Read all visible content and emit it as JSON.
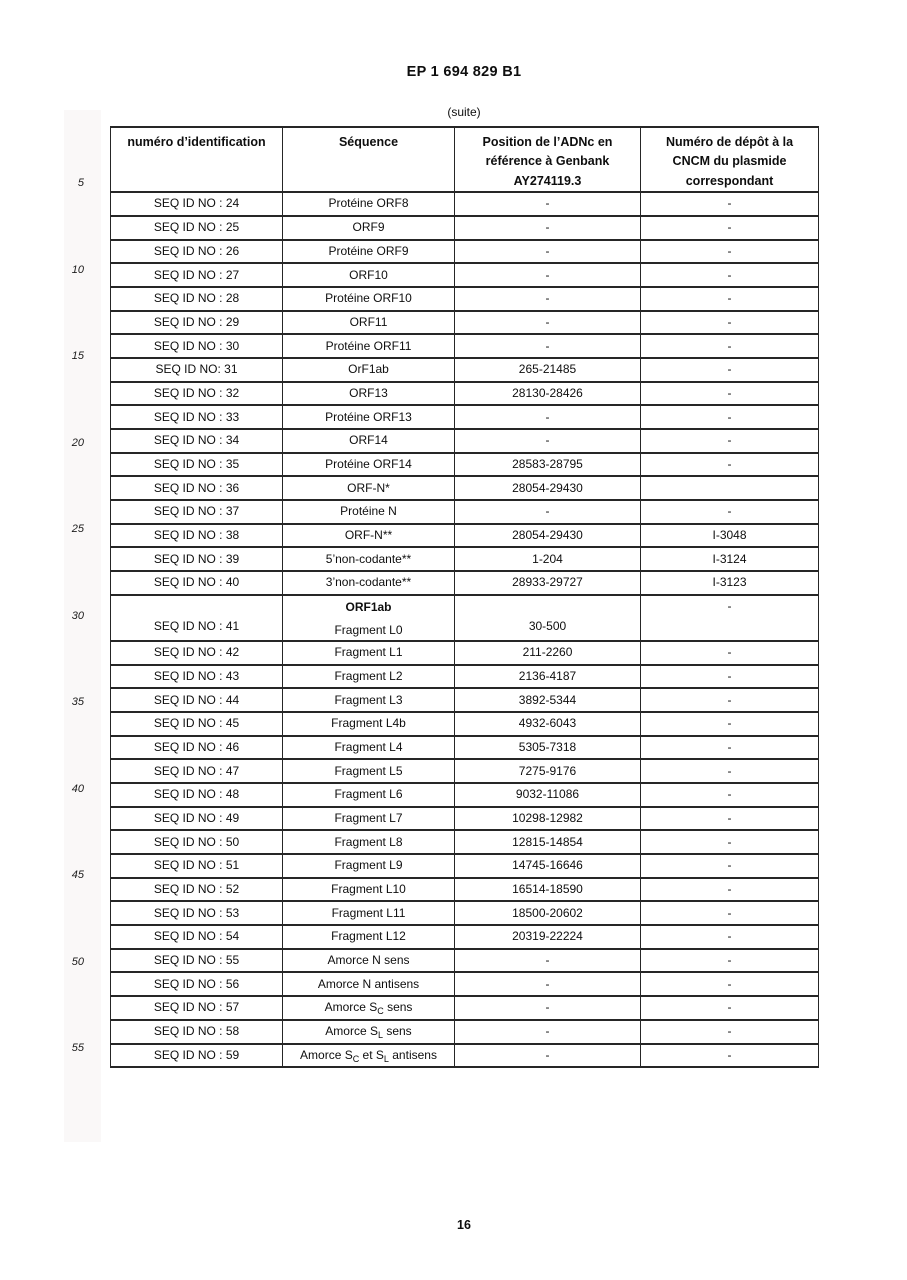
{
  "page": {
    "doc_number": "EP 1 694 829 B1",
    "continuation_label": "(suite)",
    "page_number": "16",
    "line_numbers": [
      "5",
      "10",
      "15",
      "20",
      "25",
      "30",
      "35",
      "40",
      "45",
      "50",
      "55"
    ]
  },
  "table": {
    "headers": [
      "numéro d’identification",
      "Séquence",
      "Position de l’ADNc en\nréférence à Genbank\nAY274119.3",
      "Numéro de dépôt à la\nCNCM du plasmide\ncorrespondant"
    ],
    "rows": [
      {
        "id": "SEQ ID NO : 24",
        "seq": "Protéine ORF8",
        "pos": "-",
        "dep": "-"
      },
      {
        "id": "SEQ ID NO : 25",
        "seq": "ORF9",
        "pos": "-",
        "dep": "-"
      },
      {
        "id": "SEQ ID NO : 26",
        "seq": "Protéine ORF9",
        "pos": "-",
        "dep": "-"
      },
      {
        "id": "SEQ ID NO : 27",
        "seq": "ORF10",
        "pos": "-",
        "dep": "-"
      },
      {
        "id": "SEQ ID NO : 28",
        "seq": "Protéine ORF10",
        "pos": "-",
        "dep": "-"
      },
      {
        "id": "SEQ ID NO : 29",
        "seq": "ORF11",
        "pos": "-",
        "dep": "-"
      },
      {
        "id": "SEQ ID NO : 30",
        "seq": "Protéine ORF11",
        "pos": "-",
        "dep": "-"
      },
      {
        "id": "SEQ ID NO: 31",
        "seq": "OrF1ab",
        "pos": "265-21485",
        "dep": "-"
      },
      {
        "id": "SEQ ID NO : 32",
        "seq": "ORF13",
        "pos": "28130-28426",
        "dep": "-"
      },
      {
        "id": "SEQ ID NO : 33",
        "seq": "Protéine ORF13",
        "pos": "-",
        "dep": "-"
      },
      {
        "id": "SEQ ID NO : 34",
        "seq": "ORF14",
        "pos": "-",
        "dep": "-"
      },
      {
        "id": "SEQ ID NO : 35",
        "seq": "Protéine ORF14",
        "pos": "28583-28795",
        "dep": "-"
      },
      {
        "id": "SEQ ID NO : 36",
        "seq": "ORF-N*",
        "pos": "28054-29430",
        "dep": ""
      },
      {
        "id": "SEQ ID NO : 37",
        "seq": "Protéine N",
        "pos": "-",
        "dep": "-"
      },
      {
        "id": "SEQ ID NO : 38",
        "seq": "ORF-N**",
        "pos": "28054-29430",
        "dep": "I-3048"
      },
      {
        "id": "SEQ ID NO : 39",
        "seq": "5’non-codante**",
        "pos": "1-204",
        "dep": "I-3124"
      },
      {
        "id": "SEQ ID NO : 40",
        "seq": "3’non-codante**",
        "pos": "28933-29727",
        "dep": "I-3123"
      },
      {
        "id": "SEQ ID NO : 41",
        "seq_group": "ORF1ab",
        "seq": "Fragment L0",
        "pos": "30-500",
        "dep": "-",
        "double": true
      },
      {
        "id": "SEQ ID NO : 42",
        "seq": "Fragment L1",
        "pos": "211-2260",
        "dep": "-"
      },
      {
        "id": "SEQ ID NO : 43",
        "seq": "Fragment L2",
        "pos": "2136-4187",
        "dep": "-"
      },
      {
        "id": "SEQ ID NO : 44",
        "seq": "Fragment L3",
        "pos": "3892-5344",
        "dep": "-"
      },
      {
        "id": "SEQ ID NO : 45",
        "seq": "Fragment L4b",
        "pos": "4932-6043",
        "dep": "-"
      },
      {
        "id": "SEQ ID NO : 46",
        "seq": "Fragment L4",
        "pos": "5305-7318",
        "dep": "-"
      },
      {
        "id": "SEQ ID NO : 47",
        "seq": "Fragment L5",
        "pos": "7275-9176",
        "dep": "-"
      },
      {
        "id": "SEQ ID NO : 48",
        "seq": "Fragment L6",
        "pos": "9032-11086",
        "dep": "-"
      },
      {
        "id": "SEQ ID NO : 49",
        "seq": "Fragment L7",
        "pos": "10298-12982",
        "dep": "-"
      },
      {
        "id": "SEQ ID NO : 50",
        "seq": "Fragment L8",
        "pos": "12815-14854",
        "dep": "-"
      },
      {
        "id": "SEQ ID NO : 51",
        "seq": "Fragment L9",
        "pos": "14745-16646",
        "dep": "-"
      },
      {
        "id": "SEQ ID NO : 52",
        "seq": "Fragment L10",
        "pos": "16514-18590",
        "dep": "-"
      },
      {
        "id": "SEQ ID NO : 53",
        "seq": "Fragment L11",
        "pos": "18500-20602",
        "dep": "-"
      },
      {
        "id": "SEQ ID NO : 54",
        "seq": "Fragment L12",
        "pos": "20319-22224",
        "dep": "-"
      },
      {
        "id": "SEQ ID NO : 55",
        "seq": "Amorce N sens",
        "pos": "-",
        "dep": "-"
      },
      {
        "id": "SEQ ID NO : 56",
        "seq": "Amorce N antisens",
        "pos": "-",
        "dep": "-"
      },
      {
        "id": "SEQ ID NO : 57",
        "seq": "Amorce S_{C} sens",
        "pos": "-",
        "dep": "-"
      },
      {
        "id": "SEQ ID NO : 58",
        "seq": "Amorce S_{L} sens",
        "pos": "-",
        "dep": "-"
      },
      {
        "id": "SEQ ID NO : 59",
        "seq": "Amorce S_{C} et S_{L} antisens",
        "pos": "-",
        "dep": "-"
      }
    ]
  }
}
